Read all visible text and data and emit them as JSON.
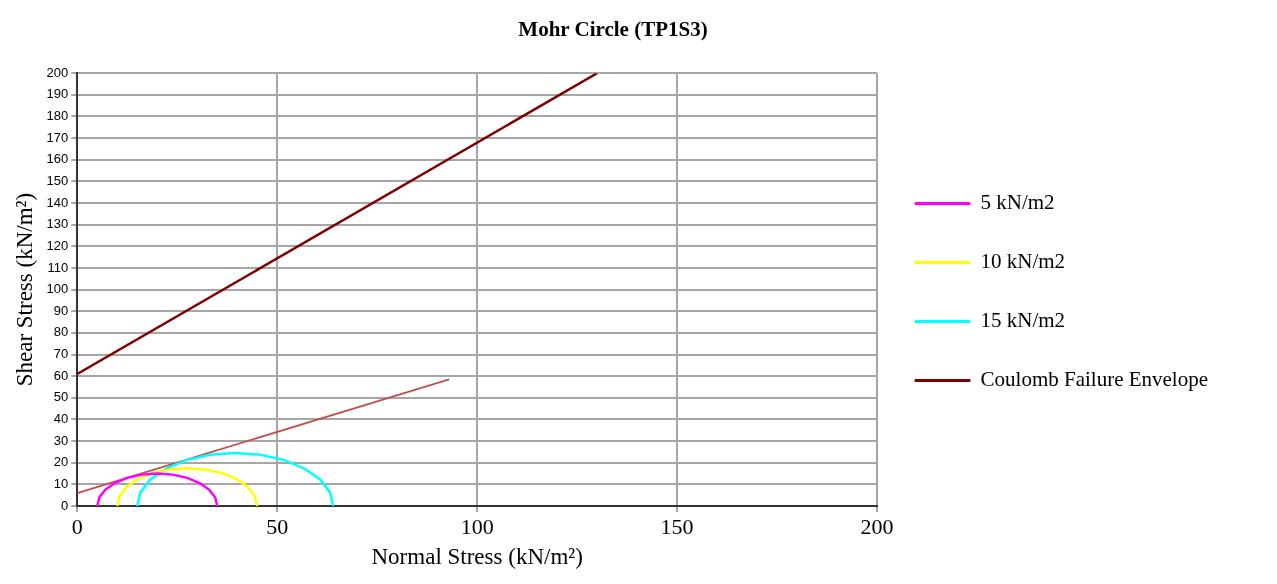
{
  "chart_data": {
    "type": "line",
    "title": "Mohr Circle (TP1S3)",
    "xlabel": "Normal Stress (kN/m²)",
    "ylabel": "Shear Stress (kN/m²)",
    "xlim": [
      0,
      200
    ],
    "xticks": [
      0,
      50,
      100,
      150,
      200
    ],
    "ylim": [
      0,
      200
    ],
    "yticks": [
      0,
      10,
      20,
      30,
      40,
      50,
      60,
      70,
      80,
      90,
      100,
      110,
      120,
      130,
      140,
      150,
      160,
      170,
      180,
      190,
      200
    ],
    "grid": true,
    "legend": "right",
    "marker": "none",
    "line_style": "solid",
    "series": [
      {
        "name": "5 kN/m2",
        "color": "#ff00ff",
        "x": [
          5,
          5.5,
          7,
          9.4,
          12.5,
          16.1,
          20,
          23.9,
          27.5,
          30.6,
          33,
          34.5,
          35
        ],
        "values": [
          0,
          3.9,
          7.5,
          10.6,
          13,
          14.5,
          15,
          14.5,
          13,
          10.6,
          7.5,
          3.9,
          0
        ]
      },
      {
        "name": "10 kN/m2",
        "color": "#ffff00",
        "x": [
          10,
          10.6,
          12.3,
          15.1,
          18.8,
          23,
          27.5,
          32,
          36.3,
          39.9,
          42.7,
          44.4,
          45
        ],
        "values": [
          0,
          4.5,
          8.8,
          12.4,
          15.2,
          16.9,
          17.5,
          16.9,
          15.2,
          12.4,
          8.8,
          4.5,
          0
        ]
      },
      {
        "name": "15 kN/m2",
        "color": "#00ffff",
        "x": [
          15,
          15.8,
          18.3,
          22.2,
          27.3,
          33.2,
          39.5,
          45.8,
          51.8,
          56.8,
          60.7,
          63.2,
          64
        ],
        "values": [
          0,
          6.3,
          12.3,
          17.3,
          21.2,
          23.7,
          24.5,
          23.7,
          21.2,
          17.3,
          12.3,
          6.3,
          0
        ]
      },
      {
        "name": "Coulomb Failure Envelope",
        "color": "#800000",
        "x": [
          0,
          130
        ],
        "values": [
          61,
          200
        ]
      },
      {
        "color": "#c0504d",
        "x": [
          0,
          93
        ],
        "values": [
          6,
          58.5
        ]
      }
    ]
  }
}
